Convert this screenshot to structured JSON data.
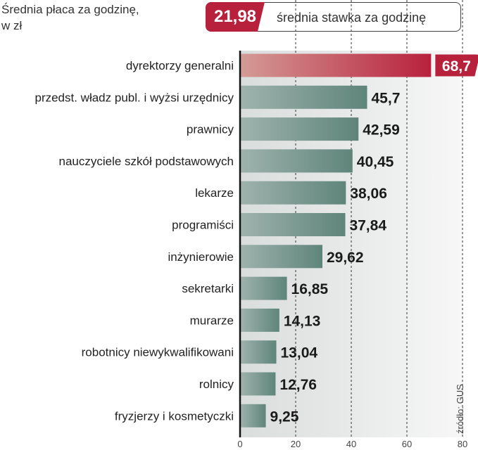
{
  "header": {
    "title_line1": "Średnia płaca za godzinę,",
    "title_line2": "w zł"
  },
  "average": {
    "value": "21,98",
    "label": "średnia stawka za godzinę"
  },
  "source": "źródło: GUS",
  "colors": {
    "highlight_bar": "#b8213c",
    "bar": "#6e9389",
    "average_badge": "#b8213c",
    "plot_background": "#eceeee"
  },
  "chart_data": {
    "type": "bar",
    "orientation": "horizontal",
    "categories": [
      "dyrektorzy generalni",
      "przedst. władz publ. i wyżsi urzędnicy",
      "prawnicy",
      "nauczyciele szkół podstawowych",
      "lekarze",
      "programiści",
      "inżynierowie",
      "sekretarki",
      "murarze",
      "robotnicy niewykwalifikowani",
      "rolnicy",
      "fryzjerzy i kosmetyczki"
    ],
    "values": [
      68.7,
      45.7,
      42.59,
      40.45,
      38.06,
      37.84,
      29.62,
      16.85,
      14.13,
      13.04,
      12.76,
      9.25
    ],
    "value_labels": [
      "68,7",
      "45,7",
      "42,59",
      "40,45",
      "38,06",
      "37,84",
      "29,62",
      "16,85",
      "14,13",
      "13,04",
      "12,76",
      "9,25"
    ],
    "highlight_index": 0,
    "xlim": [
      0,
      80
    ],
    "xticks": [
      0,
      20,
      40,
      60,
      80
    ],
    "grid": true,
    "average_line": 21.98
  }
}
